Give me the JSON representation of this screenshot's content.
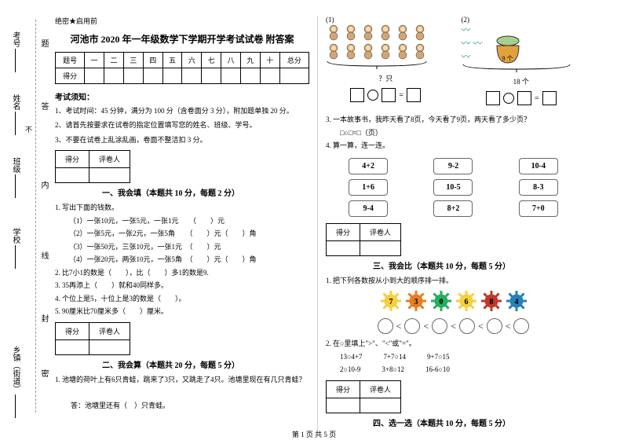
{
  "sidebar": {
    "labels": [
      "考号",
      "姓名",
      "班级",
      "学校",
      "乡镇（街道）"
    ],
    "markers": [
      "题",
      "答",
      "内",
      "线",
      "封",
      "密"
    ],
    "cut": "不"
  },
  "header": {
    "secret": "绝密★启用前",
    "title": "河池市 2020 年一年级数学下学期开学考试试卷 附答案"
  },
  "scoreTable": {
    "row1": [
      "题号",
      "一",
      "二",
      "三",
      "四",
      "五",
      "六",
      "七",
      "八",
      "九",
      "十",
      "总分"
    ],
    "row2Label": "得分"
  },
  "notice": {
    "head": "考试须知：",
    "items": [
      "1、考试时间：45 分钟，满分为 100 分（含卷面分 3 分），附加题单独 20 分。",
      "2、请首先按要求在试卷的指定位置填写您的姓名、班级、学号。",
      "3、不要在试卷上乱涂乱画，卷面不整洁扣 3 分。"
    ]
  },
  "scoreBox": {
    "c1": "得分",
    "c2": "评卷人"
  },
  "sec1": {
    "title": "一、我会填（本题共 10 分，每题 2 分）",
    "q1": "1. 写出下面的钱数。",
    "q1items": [
      "（1）一张10元，一张5元，一张1元　　（　　）元",
      "（2）一张5元，一张2元，一张5角　　（　　）元（　　）角",
      "（3）一张50元，三张10元，一张1元　（　　）元",
      "（4）一张20元，两张10元，一张5角　（　　）元（　　）角"
    ],
    "q2": "2. 比7小1的数是（　　），比（　　）多1的数是9.",
    "q3": "3. 35再添上（　　）就和40同样多。",
    "q4": "4. 个位上是5，十位上是3的数是（　　）。",
    "q5": "5. 90厘米比70厘米多（　　）厘米。"
  },
  "sec2": {
    "title": "二、我会算（本题共 20 分，每题 5 分）",
    "q1": "1. 池塘的荷叶上有6只青蛙，跳来了3只，又跳走了4只。池塘里现在有几只青蛙？",
    "ans": "答：池塘里还有（　）只青蛙。"
  },
  "right": {
    "fig1": "(1)",
    "fig2": "(2)",
    "brace1": "？只",
    "brace2": "18 个",
    "basket": "9 个",
    "q3": "3. 一本故事书，我昨天看了8页，今天看了9页，两天看了多少页？",
    "q3box": "□○□=□（页）",
    "q4": "4. 算一算，连一连。",
    "calc": {
      "col1": [
        "4+2",
        "1+6",
        "9-4"
      ],
      "col2": [
        "9-2",
        "10-5",
        "8+2"
      ],
      "col3": [
        "10-4",
        "8-3",
        "7+0"
      ]
    }
  },
  "sec3": {
    "title": "三、我会比（本题共 10 分，每题 5 分）",
    "q1": "1. 把下列各数按从小到大的顺序排一排。",
    "suns": [
      {
        "n": "7",
        "c": "#f4d03f"
      },
      {
        "n": "3",
        "c": "#e67e22"
      },
      {
        "n": "0",
        "c": "#27ae60"
      },
      {
        "n": "6",
        "c": "#f4d03f"
      },
      {
        "n": "8",
        "c": "#c0392b"
      },
      {
        "n": "4",
        "c": "#2980b9"
      }
    ],
    "q2": "2. 在○里填上\">\"、\"<\"或\"=\"。",
    "q2items": [
      "13○4+7　　　7+7○14　　　9+7○15",
      "2○10-9　　　3+8○12　　　16-6○10"
    ]
  },
  "sec4": {
    "title": "四、选一选（本题共 10 分，每题 5 分）"
  },
  "footer": "第 1 页 共 5 页"
}
